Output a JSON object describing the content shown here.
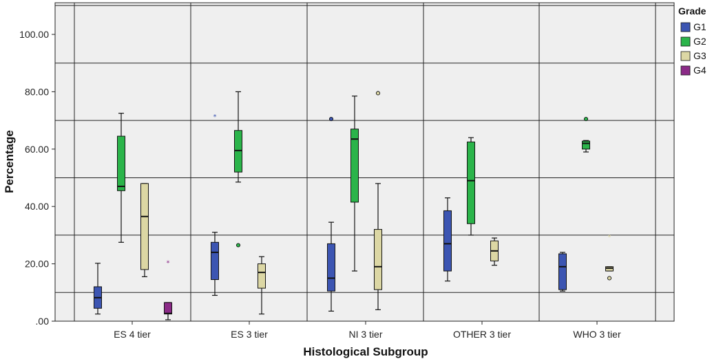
{
  "chart_data": {
    "type": "box",
    "xlabel": "Histological Subgroup",
    "ylabel": "Percentage",
    "ylim": [
      0,
      112
    ],
    "yticks": [
      0,
      20,
      40,
      60,
      80,
      100
    ],
    "ytick_labels": [
      ".00",
      "20.00",
      "40.00",
      "60.00",
      "80.00",
      "100.00"
    ],
    "grid": true,
    "legend": {
      "title": "Grade",
      "position": "right"
    },
    "categories": [
      "ES 4 tier",
      "ES 3 tier",
      "NI 3 tier",
      "OTHER 3 tier",
      "WHO 3 tier"
    ],
    "series": [
      {
        "name": "G1",
        "color": "#3c55b2",
        "boxes": [
          {
            "category": "ES 4 tier",
            "min": 2.5,
            "q1": 4.5,
            "median": 8.2,
            "q3": 12.0,
            "max": 20.2,
            "outliers": []
          },
          {
            "category": "ES 3 tier",
            "min": 9.0,
            "q1": 14.5,
            "median": 24.0,
            "q3": 27.5,
            "max": 31.0,
            "outliers": [
              {
                "value": 71.5,
                "style": "star"
              }
            ]
          },
          {
            "category": "NI 3 tier",
            "min": 3.5,
            "q1": 10.5,
            "median": 15.0,
            "q3": 27.0,
            "max": 34.5,
            "outliers": [
              {
                "value": 70.5,
                "style": "circle"
              }
            ]
          },
          {
            "category": "OTHER 3 tier",
            "min": 14.0,
            "q1": 17.5,
            "median": 27.0,
            "q3": 38.5,
            "max": 43.0,
            "outliers": []
          },
          {
            "category": "WHO 3 tier",
            "min": 10.5,
            "q1": 11.0,
            "median": 19.0,
            "q3": 23.5,
            "max": 24.0,
            "outliers": []
          }
        ]
      },
      {
        "name": "G2",
        "color": "#2bb44a",
        "boxes": [
          {
            "category": "ES 4 tier",
            "min": 27.5,
            "q1": 45.5,
            "median": 47.0,
            "q3": 64.5,
            "max": 72.5,
            "outliers": []
          },
          {
            "category": "ES 3 tier",
            "min": 48.5,
            "q1": 52.0,
            "median": 59.5,
            "q3": 66.5,
            "max": 80.0,
            "outliers": [
              {
                "value": 26.5,
                "style": "circle"
              }
            ]
          },
          {
            "category": "NI 3 tier",
            "min": 17.5,
            "q1": 41.5,
            "median": 63.5,
            "q3": 67.0,
            "max": 78.5,
            "outliers": []
          },
          {
            "category": "OTHER 3 tier",
            "min": 30.0,
            "q1": 34.0,
            "median": 49.0,
            "q3": 62.5,
            "max": 64.0,
            "outliers": []
          },
          {
            "category": "WHO 3 tier",
            "min": 59.0,
            "q1": 60.0,
            "median": 62.0,
            "q3": 62.8,
            "max": 63.0,
            "outliers": [
              {
                "value": 70.5,
                "style": "circle"
              }
            ]
          }
        ]
      },
      {
        "name": "G3",
        "color": "#dcd7a4",
        "boxes": [
          {
            "category": "ES 4 tier",
            "min": 15.5,
            "q1": 18.0,
            "median": 36.5,
            "q3": 48.0,
            "max": 48.0,
            "outliers": []
          },
          {
            "category": "ES 3 tier",
            "min": 2.5,
            "q1": 11.5,
            "median": 17.0,
            "q3": 20.0,
            "max": 22.5,
            "outliers": []
          },
          {
            "category": "NI 3 tier",
            "min": 4.0,
            "q1": 11.0,
            "median": 19.0,
            "q3": 32.0,
            "max": 48.0,
            "outliers": [
              {
                "value": 79.5,
                "style": "circle"
              }
            ]
          },
          {
            "category": "OTHER 3 tier",
            "min": 19.5,
            "q1": 21.0,
            "median": 24.5,
            "q3": 28.0,
            "max": 29.0,
            "outliers": []
          },
          {
            "category": "WHO 3 tier",
            "min": 17.5,
            "q1": 17.5,
            "median": 18.5,
            "q3": 19.0,
            "max": 19.0,
            "outliers": [
              {
                "value": 15.0,
                "style": "circle"
              },
              {
                "value": 29.5,
                "style": "star"
              }
            ]
          }
        ]
      },
      {
        "name": "G4",
        "color": "#8b2a87",
        "boxes": [
          {
            "category": "ES 4 tier",
            "min": 0.5,
            "q1": 2.5,
            "median": 2.7,
            "q3": 6.5,
            "max": 6.5,
            "outliers": [
              {
                "value": 20.5,
                "style": "star"
              }
            ]
          }
        ]
      }
    ]
  }
}
